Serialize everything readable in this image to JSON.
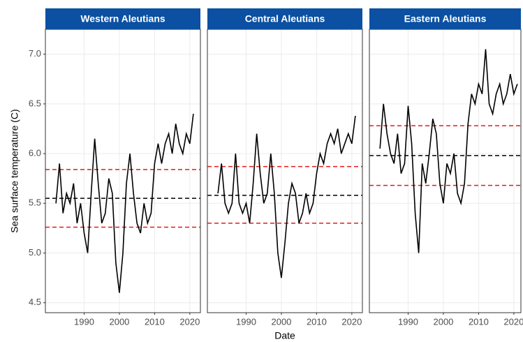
{
  "chart_data": [
    {
      "type": "line",
      "title": "Western Aleutians",
      "ylabel": "Sea surface temperature (C)",
      "x": [
        1982,
        1983,
        1984,
        1985,
        1986,
        1987,
        1988,
        1989,
        1990,
        1991,
        1992,
        1993,
        1994,
        1995,
        1996,
        1997,
        1998,
        1999,
        2000,
        2001,
        2002,
        2003,
        2004,
        2005,
        2006,
        2007,
        2008,
        2009,
        2010,
        2011,
        2012,
        2013,
        2014,
        2015,
        2016,
        2017,
        2018,
        2019,
        2020,
        2021
      ],
      "values": [
        5.5,
        5.9,
        5.4,
        5.6,
        5.5,
        5.7,
        5.3,
        5.5,
        5.2,
        5.0,
        5.6,
        6.15,
        5.7,
        5.3,
        5.4,
        5.75,
        5.6,
        4.9,
        4.6,
        5.0,
        5.7,
        6.0,
        5.6,
        5.3,
        5.2,
        5.5,
        5.3,
        5.4,
        5.9,
        6.1,
        5.9,
        6.1,
        6.2,
        6.0,
        6.3,
        6.1,
        6.0,
        6.2,
        6.1,
        6.4
      ],
      "color": "#000000",
      "reference_lines": [
        {
          "value": 5.55,
          "color": "#000000"
        },
        {
          "value": 5.84,
          "color": "#e41a1c"
        },
        {
          "value": 5.26,
          "color": "#e41a1c"
        }
      ],
      "xlim": [
        1979,
        2023
      ],
      "xticks": [
        1990,
        2000,
        2010,
        2020
      ],
      "ylim": [
        4.4,
        7.25
      ],
      "yticks": [
        4.5,
        {
          "value": 5,
          "label": "5.0"
        },
        5.5,
        {
          "value": 6,
          "label": "6.0"
        },
        6.5,
        {
          "value": 7,
          "label": "7.0"
        }
      ],
      "grid": true
    },
    {
      "type": "line",
      "title": "Central Aleutians",
      "xlabel": "Date",
      "x": [
        1982,
        1983,
        1984,
        1985,
        1986,
        1987,
        1988,
        1989,
        1990,
        1991,
        1992,
        1993,
        1994,
        1995,
        1996,
        1997,
        1998,
        1999,
        2000,
        2001,
        2002,
        2003,
        2004,
        2005,
        2006,
        2007,
        2008,
        2009,
        2010,
        2011,
        2012,
        2013,
        2014,
        2015,
        2016,
        2017,
        2018,
        2019,
        2020,
        2021
      ],
      "values": [
        5.6,
        5.9,
        5.5,
        5.4,
        5.5,
        6.0,
        5.5,
        5.4,
        5.5,
        5.3,
        5.7,
        6.2,
        5.8,
        5.5,
        5.6,
        6.0,
        5.6,
        5.0,
        4.75,
        5.1,
        5.5,
        5.7,
        5.6,
        5.3,
        5.4,
        5.6,
        5.4,
        5.5,
        5.8,
        6.0,
        5.9,
        6.1,
        6.2,
        6.1,
        6.25,
        6.0,
        6.1,
        6.2,
        6.1,
        6.38
      ],
      "color": "#000000",
      "reference_lines": [
        {
          "value": 5.58,
          "color": "#000000"
        },
        {
          "value": 5.87,
          "color": "#e41a1c"
        },
        {
          "value": 5.3,
          "color": "#e41a1c"
        }
      ],
      "xlim": [
        1979,
        2023
      ],
      "xticks": [
        1990,
        2000,
        2010,
        2020
      ],
      "ylim": [
        4.4,
        7.25
      ],
      "yticks": [
        4.5,
        {
          "value": 5,
          "label": "5.0"
        },
        5.5,
        {
          "value": 6,
          "label": "6.0"
        },
        6.5,
        {
          "value": 7,
          "label": "7.0"
        }
      ],
      "grid": true
    },
    {
      "type": "line",
      "title": "Eastern Aleutians",
      "x": [
        1982,
        1983,
        1984,
        1985,
        1986,
        1987,
        1988,
        1989,
        1990,
        1991,
        1992,
        1993,
        1994,
        1995,
        1996,
        1997,
        1998,
        1999,
        2000,
        2001,
        2002,
        2003,
        2004,
        2005,
        2006,
        2007,
        2008,
        2009,
        2010,
        2011,
        2012,
        2013,
        2014,
        2015,
        2016,
        2017,
        2018,
        2019,
        2020,
        2021
      ],
      "values": [
        6.05,
        6.5,
        6.2,
        6.0,
        5.9,
        6.2,
        5.8,
        5.9,
        6.48,
        6.1,
        5.4,
        5.0,
        5.9,
        5.7,
        6.0,
        6.35,
        6.2,
        5.7,
        5.5,
        5.9,
        5.8,
        6.0,
        5.6,
        5.5,
        5.7,
        6.3,
        6.6,
        6.5,
        6.7,
        6.6,
        7.05,
        6.5,
        6.4,
        6.6,
        6.7,
        6.5,
        6.6,
        6.8,
        6.6,
        6.7
      ],
      "color": "#000000",
      "reference_lines": [
        {
          "value": 5.98,
          "color": "#000000"
        },
        {
          "value": 6.28,
          "color": "#e41a1c"
        },
        {
          "value": 5.68,
          "color": "#e41a1c"
        }
      ],
      "xlim": [
        1979,
        2023
      ],
      "xticks": [
        1990,
        2000,
        2010,
        2020
      ],
      "ylim": [
        4.4,
        7.25
      ],
      "yticks": [
        4.5,
        {
          "value": 5,
          "label": "5.0"
        },
        5.5,
        {
          "value": 6,
          "label": "6.0"
        },
        6.5,
        {
          "value": 7,
          "label": "7.0"
        }
      ],
      "grid": true
    }
  ]
}
